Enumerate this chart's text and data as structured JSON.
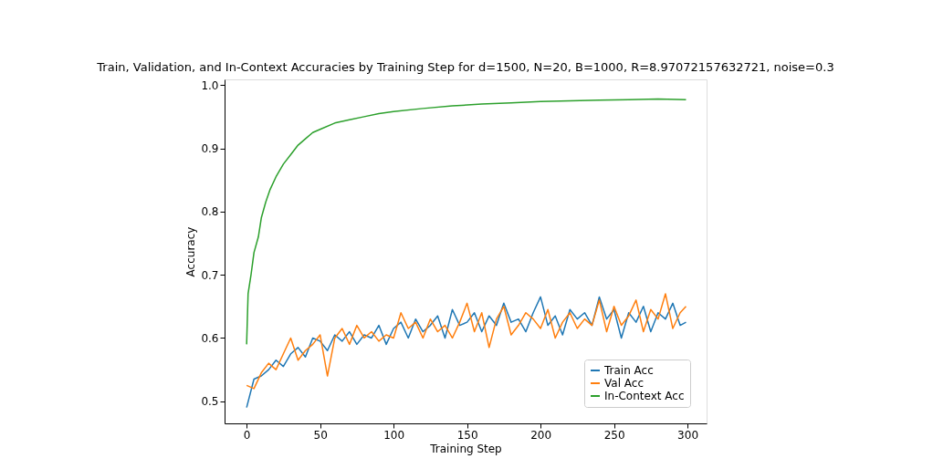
{
  "chart_data": {
    "type": "line",
    "title": "Train, Validation, and In-Context Accuracies by Training Step for d=1500, N=20, B=1000, R=8.97072157632721, noise=0.3",
    "xlabel": "Training Step",
    "ylabel": "Accuracy",
    "x": [
      0,
      5,
      10,
      15,
      20,
      25,
      30,
      35,
      40,
      45,
      50,
      55,
      60,
      65,
      70,
      75,
      80,
      85,
      90,
      95,
      100,
      105,
      110,
      115,
      120,
      125,
      130,
      135,
      140,
      145,
      150,
      155,
      160,
      165,
      170,
      175,
      180,
      185,
      190,
      195,
      200,
      205,
      210,
      215,
      220,
      225,
      230,
      235,
      240,
      245,
      250,
      255,
      260,
      265,
      270,
      275,
      280,
      285,
      290,
      295,
      299
    ],
    "xlim": [
      -15,
      313
    ],
    "xticks": [
      0,
      50,
      100,
      150,
      200,
      250,
      300
    ],
    "ylim": [
      0.465,
      1.009
    ],
    "yticks": [
      0.5,
      0.6,
      0.7,
      0.8,
      0.9,
      {
        "value": 1.0,
        "label": "1.0"
      }
    ],
    "series": [
      {
        "name": "Train Acc",
        "color": "#1f77b4",
        "values": [
          0.49,
          0.535,
          0.54,
          0.55,
          0.565,
          0.555,
          0.575,
          0.585,
          0.57,
          0.6,
          0.595,
          0.58,
          0.605,
          0.595,
          0.61,
          0.59,
          0.605,
          0.6,
          0.62,
          0.59,
          0.615,
          0.625,
          0.6,
          0.63,
          0.61,
          0.62,
          0.635,
          0.6,
          0.645,
          0.62,
          0.625,
          0.64,
          0.61,
          0.635,
          0.62,
          0.655,
          0.625,
          0.63,
          0.61,
          0.64,
          0.665,
          0.62,
          0.635,
          0.605,
          0.645,
          0.63,
          0.64,
          0.62,
          0.665,
          0.63,
          0.645,
          0.6,
          0.64,
          0.625,
          0.65,
          0.61,
          0.64,
          0.63,
          0.655,
          0.62,
          0.625
        ]
      },
      {
        "name": "Val Acc",
        "color": "#ff7f0e",
        "values": [
          0.525,
          0.52,
          0.545,
          0.56,
          0.55,
          0.575,
          0.6,
          0.565,
          0.58,
          0.59,
          0.605,
          0.54,
          0.6,
          0.615,
          0.59,
          0.62,
          0.6,
          0.61,
          0.595,
          0.605,
          0.6,
          0.64,
          0.615,
          0.625,
          0.6,
          0.63,
          0.61,
          0.62,
          0.6,
          0.625,
          0.655,
          0.61,
          0.64,
          0.585,
          0.63,
          0.65,
          0.605,
          0.62,
          0.64,
          0.63,
          0.615,
          0.645,
          0.6,
          0.625,
          0.64,
          0.615,
          0.63,
          0.62,
          0.66,
          0.61,
          0.65,
          0.62,
          0.635,
          0.66,
          0.61,
          0.645,
          0.63,
          0.67,
          0.615,
          0.64,
          0.65
        ]
      },
      {
        "name": "In-Context Acc",
        "color": "#2ca02c",
        "x": [
          0,
          1,
          3,
          5,
          8,
          10,
          13,
          16,
          20,
          25,
          30,
          35,
          40,
          45,
          50,
          60,
          70,
          80,
          90,
          100,
          120,
          140,
          160,
          180,
          200,
          220,
          240,
          260,
          280,
          299
        ],
        "values": [
          0.59,
          0.67,
          0.7,
          0.735,
          0.76,
          0.79,
          0.815,
          0.835,
          0.855,
          0.875,
          0.89,
          0.905,
          0.915,
          0.925,
          0.93,
          0.94,
          0.945,
          0.95,
          0.955,
          0.958,
          0.963,
          0.967,
          0.97,
          0.972,
          0.974,
          0.975,
          0.976,
          0.977,
          0.978,
          0.977
        ]
      }
    ],
    "legend": "bottom right",
    "grid": false,
    "marker": "none",
    "line_style": "solid"
  }
}
